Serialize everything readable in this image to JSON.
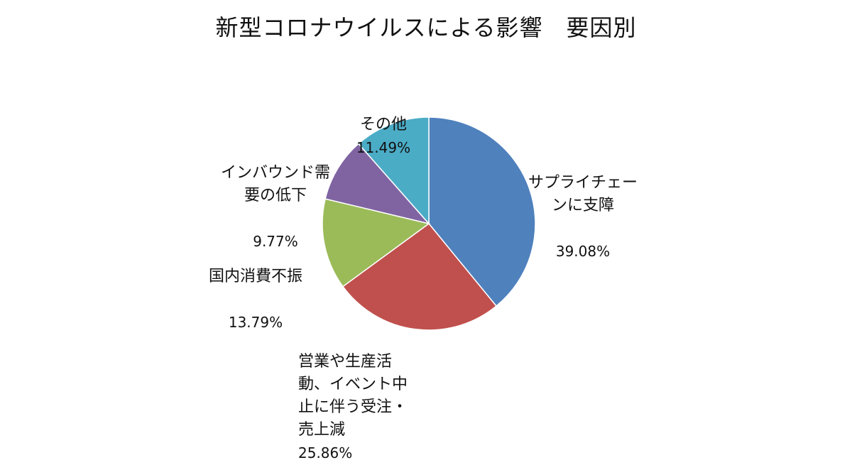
{
  "chart_data": {
    "type": "pie",
    "title": "新型コロナウイルスによる影響　要因別",
    "slices": [
      {
        "label": "サプライチェーンに支障",
        "label_lines": "サプライチェー\nンに支障",
        "value": 39.08,
        "value_text": "39.08%",
        "color": "#4f81bd"
      },
      {
        "label": "営業や生産活動、イベント中止に伴う受注・売上減",
        "label_lines": "営業や生産活\n動、イベント中\n止に伴う受注・\n売上減",
        "value": 25.86,
        "value_text": "25.86%",
        "color": "#c0504d"
      },
      {
        "label": "国内消費不振",
        "label_lines": "国内消費不振",
        "value": 13.79,
        "value_text": "13.79%",
        "color": "#9bbb59"
      },
      {
        "label": "インバウンド需要の低下",
        "label_lines": "インバウンド需\n要の低下",
        "value": 9.77,
        "value_text": "9.77%",
        "color": "#8064a2"
      },
      {
        "label": "その他",
        "label_lines": "その他",
        "value": 11.49,
        "value_text": "11.49%",
        "color": "#4bacc6"
      }
    ]
  }
}
